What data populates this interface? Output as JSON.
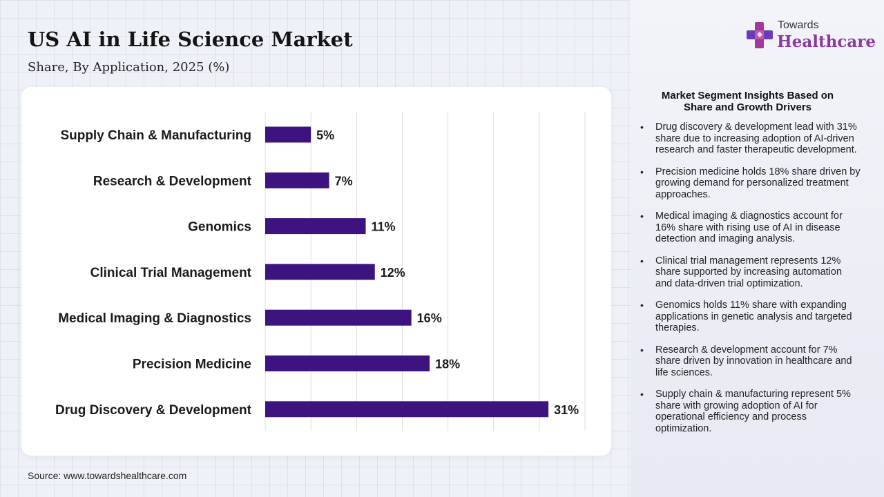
{
  "title": "US AI in Life Science Market",
  "subtitle": "Share, By Application, 2025 (%)",
  "source": "Source: www.towardshealthcare.com",
  "logo": {
    "top": "Towards",
    "main": "Healthcare",
    "icon": "cross-plus-icon"
  },
  "colors": {
    "bar": "#3d1380",
    "brand": "#8a3a9f",
    "grid": "#dedede"
  },
  "chart_data": {
    "type": "bar",
    "orientation": "horizontal",
    "categories": [
      "Supply Chain & Manufacturing",
      "Research & Development",
      "Genomics",
      "Clinical Trial Management",
      "Medical Imaging & Diagnostics",
      "Precision Medicine",
      "Drug Discovery & Development"
    ],
    "values": [
      5,
      7,
      11,
      12,
      16,
      18,
      31
    ],
    "labels": [
      "5%",
      "7%",
      "11%",
      "12%",
      "16%",
      "18%",
      "31%"
    ],
    "xlim": [
      0,
      35
    ],
    "grid": true
  },
  "insights": {
    "heading": "Market Segment Insights Based on Share and Growth Drivers",
    "items": [
      "Drug discovery & development lead with 31% share due to increasing adoption of AI-driven research and faster therapeutic development.",
      "Precision medicine holds 18% share driven by growing demand for personalized treatment approaches.",
      "Medical imaging & diagnostics account for 16% share with rising use of AI in disease detection and imaging analysis.",
      "Clinical trial management represents 12% share supported by increasing automation and data-driven trial optimization.",
      "Genomics holds 11% share with expanding applications in genetic analysis and targeted therapies.",
      "Research & development account for 7% share driven by innovation in healthcare and life sciences.",
      "Supply chain & manufacturing represent 5% share with growing adoption of AI for operational efficiency and process optimization."
    ]
  }
}
